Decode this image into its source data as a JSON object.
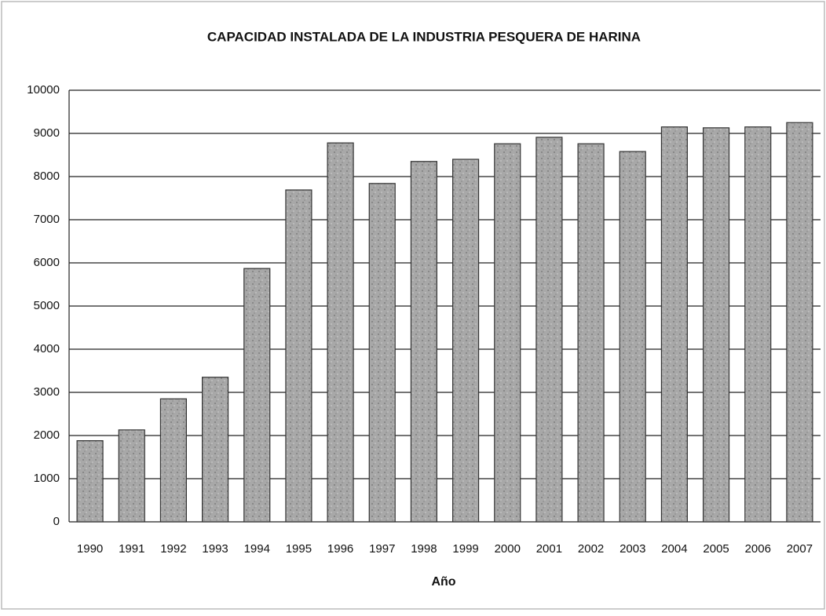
{
  "chart_data": {
    "type": "bar",
    "title": "CAPACIDAD INSTALADA DE LA INDUSTRIA PESQUERA DE HARINA",
    "x_label": "Año",
    "categories": [
      "1990",
      "1991",
      "1992",
      "1993",
      "1994",
      "1995",
      "1996",
      "1997",
      "1998",
      "1999",
      "2000",
      "2001",
      "2002",
      "2003",
      "2004",
      "2005",
      "2006",
      "2007"
    ],
    "values": [
      1880,
      2130,
      2850,
      3350,
      5870,
      7690,
      8780,
      7840,
      8350,
      8400,
      8760,
      8910,
      8760,
      8580,
      9150,
      9130,
      9150,
      9250
    ],
    "color": "#a8a8a8",
    "ylim": [
      0,
      10000
    ],
    "yticks": [
      0,
      1000,
      2000,
      3000,
      4000,
      5000,
      6000,
      7000,
      8000,
      9000,
      10000
    ],
    "grid": true
  }
}
